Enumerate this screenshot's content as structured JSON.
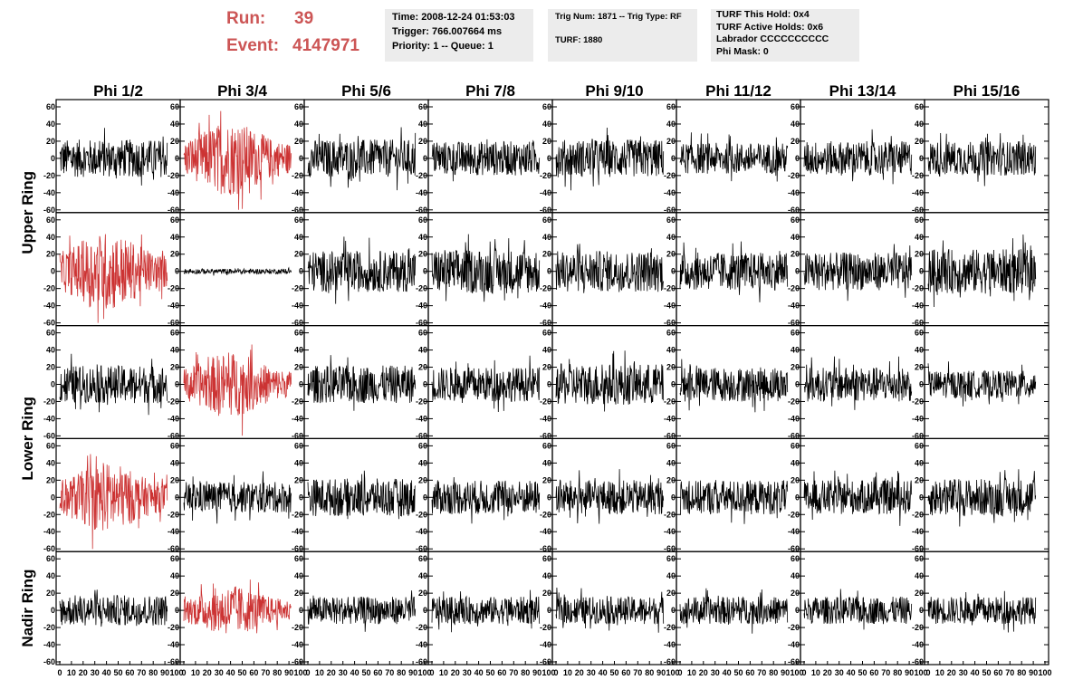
{
  "header": {
    "run_label": "Run:",
    "run_value": "39",
    "event_label": "Event:",
    "event_value": "4147971",
    "box1": [
      "Time: 2008-12-24 01:53:03",
      "Trigger: 766.007664 ms",
      "Priority: 1 -- Queue: 1"
    ],
    "box2_top": "Trig Num: 1871 -- Trig Type: RF",
    "box2_bottom": "TURF: 1880",
    "box3": [
      "TURF This Hold: 0x4",
      "TURF Active Holds: 0x6",
      "Labrador CCCCCCCCCC",
      "Phi Mask: 0"
    ]
  },
  "chart_data": {
    "type": "line",
    "columns": [
      "Phi 1/2",
      "Phi 3/4",
      "Phi 5/6",
      "Phi 7/8",
      "Phi 9/10",
      "Phi 11/12",
      "Phi 13/14",
      "Phi 15/16"
    ],
    "ring_labels": [
      "Upper Ring",
      "Lower Ring",
      "Nadir Ring"
    ],
    "ylim": [
      -60,
      60
    ],
    "yticks": [
      "60",
      "40",
      "20",
      "0",
      "-20",
      "-40",
      "-60"
    ],
    "xlim": [
      0,
      100
    ],
    "xticks": [
      "0",
      "10",
      "20",
      "30",
      "40",
      "50",
      "60",
      "70",
      "80",
      "90",
      "100"
    ],
    "samples_per_trace": 260,
    "trace_x_range": [
      0,
      92
    ],
    "colors": {
      "normal": "#000000",
      "highlight": "#cc3333"
    },
    "highlighted": [
      [
        0,
        1
      ],
      [
        1,
        0
      ],
      [
        2,
        1
      ],
      [
        3,
        0
      ],
      [
        4,
        1
      ]
    ],
    "amplitudes": [
      [
        22,
        30,
        22,
        20,
        22,
        18,
        20,
        20
      ],
      [
        32,
        3,
        24,
        26,
        24,
        22,
        22,
        26
      ],
      [
        22,
        26,
        22,
        20,
        24,
        20,
        20,
        16
      ],
      [
        28,
        18,
        22,
        20,
        20,
        20,
        20,
        22
      ],
      [
        18,
        20,
        16,
        16,
        16,
        16,
        16,
        16
      ]
    ]
  }
}
